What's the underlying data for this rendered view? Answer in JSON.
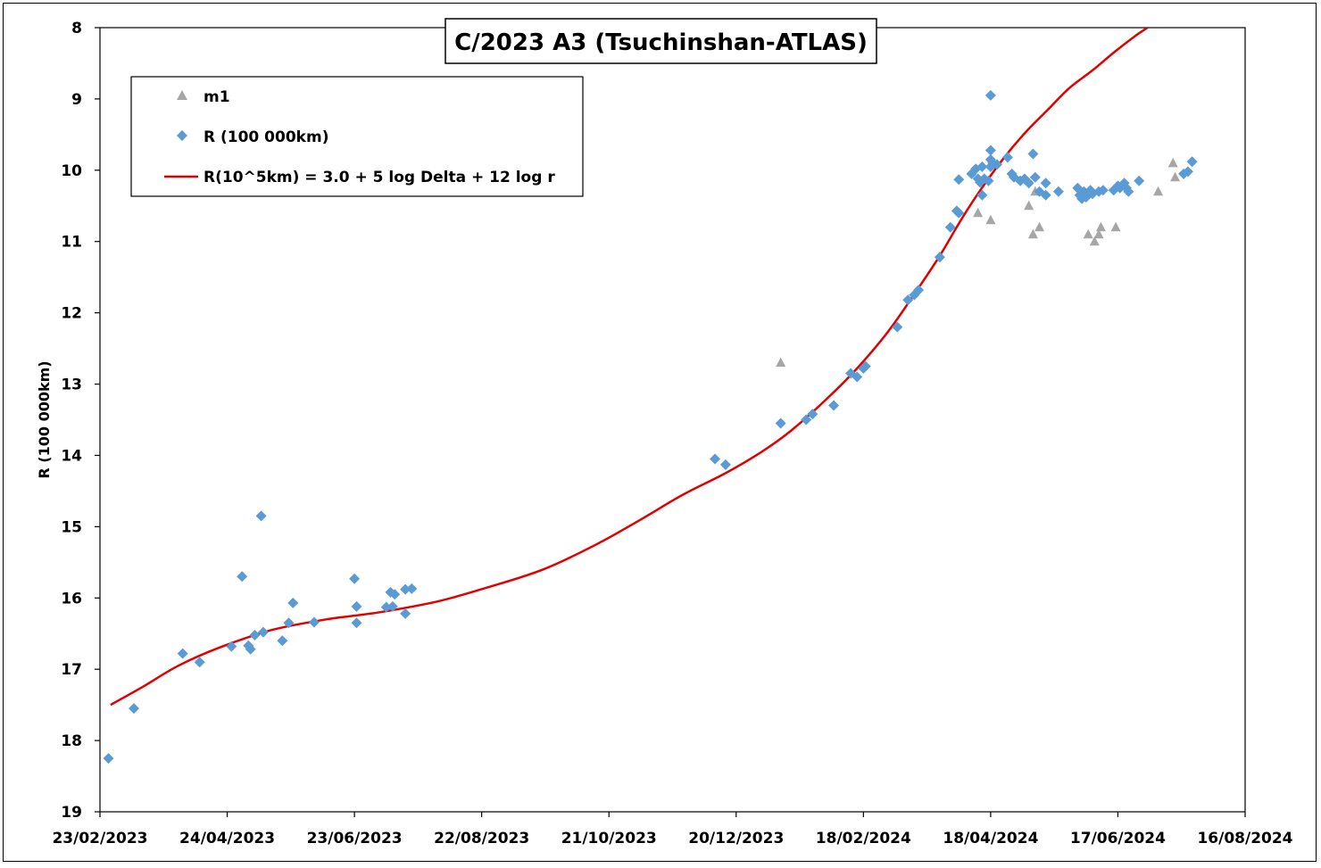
{
  "chart_data": {
    "type": "scatter",
    "title": "C/2023 A3 (Tsuchinshan-ATLAS)",
    "ylabel": "R (100 000km)",
    "xlabel": "",
    "x_type": "date",
    "xlim": [
      "2023-02-23",
      "2024-08-16"
    ],
    "ylim": [
      8,
      19
    ],
    "y_inverted": true,
    "x_ticks": [
      "23/02/2023",
      "24/04/2023",
      "23/06/2023",
      "22/08/2023",
      "21/10/2023",
      "20/12/2023",
      "18/02/2024",
      "18/04/2024",
      "17/06/2024",
      "16/08/2024"
    ],
    "y_ticks": [
      "8",
      "9",
      "10",
      "11",
      "12",
      "13",
      "14",
      "15",
      "16",
      "17",
      "18",
      "19"
    ],
    "grid": false,
    "legend_position": "top-left",
    "series": [
      {
        "name": "m1",
        "marker": "triangle",
        "color": "#a6a6a6",
        "points": [
          [
            "2024-01-10",
            12.7
          ],
          [
            "2024-04-12",
            10.6
          ],
          [
            "2024-04-18",
            10.7
          ],
          [
            "2024-05-06",
            10.5
          ],
          [
            "2024-05-08",
            10.9
          ],
          [
            "2024-05-09",
            10.3
          ],
          [
            "2024-05-11",
            10.8
          ],
          [
            "2024-06-03",
            10.9
          ],
          [
            "2024-06-06",
            11.0
          ],
          [
            "2024-06-08",
            10.9
          ],
          [
            "2024-06-09",
            10.8
          ],
          [
            "2024-06-16",
            10.8
          ],
          [
            "2024-07-06",
            10.3
          ],
          [
            "2024-07-13",
            9.9
          ],
          [
            "2024-07-14",
            10.1
          ]
        ]
      },
      {
        "name": "R (100 000km)",
        "marker": "diamond",
        "color": "#5b9bd5",
        "points": [
          [
            "2023-02-27",
            18.25
          ],
          [
            "2023-03-11",
            17.55
          ],
          [
            "2023-04-03",
            16.78
          ],
          [
            "2023-04-11",
            16.9
          ],
          [
            "2023-04-26",
            16.68
          ],
          [
            "2023-05-01",
            15.7
          ],
          [
            "2023-05-04",
            16.67
          ],
          [
            "2023-05-05",
            16.72
          ],
          [
            "2023-05-07",
            16.52
          ],
          [
            "2023-05-10",
            14.85
          ],
          [
            "2023-05-11",
            16.48
          ],
          [
            "2023-05-20",
            16.6
          ],
          [
            "2023-05-23",
            16.35
          ],
          [
            "2023-05-25",
            16.07
          ],
          [
            "2023-06-04",
            16.34
          ],
          [
            "2023-06-23",
            15.73
          ],
          [
            "2023-06-24",
            16.12
          ],
          [
            "2023-06-24",
            16.35
          ],
          [
            "2023-07-08",
            16.13
          ],
          [
            "2023-07-10",
            15.92
          ],
          [
            "2023-07-11",
            16.12
          ],
          [
            "2023-07-12",
            15.95
          ],
          [
            "2023-07-17",
            16.22
          ],
          [
            "2023-07-17",
            15.88
          ],
          [
            "2023-07-20",
            15.87
          ],
          [
            "2023-12-10",
            14.05
          ],
          [
            "2023-12-15",
            14.13
          ],
          [
            "2024-01-10",
            13.55
          ],
          [
            "2024-01-22",
            13.5
          ],
          [
            "2024-01-25",
            13.42
          ],
          [
            "2024-02-04",
            13.3
          ],
          [
            "2024-02-12",
            12.85
          ],
          [
            "2024-02-15",
            12.9
          ],
          [
            "2024-02-18",
            12.78
          ],
          [
            "2024-02-19",
            12.75
          ],
          [
            "2024-03-05",
            12.2
          ],
          [
            "2024-03-10",
            11.82
          ],
          [
            "2024-03-13",
            11.75
          ],
          [
            "2024-03-15",
            11.68
          ],
          [
            "2024-03-25",
            11.22
          ],
          [
            "2024-03-30",
            10.8
          ],
          [
            "2024-04-02",
            10.57
          ],
          [
            "2024-04-03",
            10.13
          ],
          [
            "2024-04-03",
            10.6
          ],
          [
            "2024-04-09",
            10.05
          ],
          [
            "2024-04-11",
            9.98
          ],
          [
            "2024-04-12",
            10.12
          ],
          [
            "2024-04-13",
            10.17
          ],
          [
            "2024-04-14",
            9.95
          ],
          [
            "2024-04-14",
            10.35
          ],
          [
            "2024-04-15",
            10.12
          ],
          [
            "2024-04-17",
            10.15
          ],
          [
            "2024-04-18",
            8.95
          ],
          [
            "2024-04-18",
            9.72
          ],
          [
            "2024-04-18",
            9.85
          ],
          [
            "2024-04-18",
            9.95
          ],
          [
            "2024-04-19",
            9.9
          ],
          [
            "2024-04-21",
            9.92
          ],
          [
            "2024-04-26",
            9.82
          ],
          [
            "2024-04-28",
            10.05
          ],
          [
            "2024-04-29",
            10.1
          ],
          [
            "2024-05-02",
            10.15
          ],
          [
            "2024-05-04",
            10.12
          ],
          [
            "2024-05-06",
            10.18
          ],
          [
            "2024-05-08",
            9.77
          ],
          [
            "2024-05-09",
            10.1
          ],
          [
            "2024-05-11",
            10.3
          ],
          [
            "2024-05-14",
            10.35
          ],
          [
            "2024-05-14",
            10.18
          ],
          [
            "2024-05-20",
            10.3
          ],
          [
            "2024-05-29",
            10.25
          ],
          [
            "2024-05-30",
            10.35
          ],
          [
            "2024-05-31",
            10.4
          ],
          [
            "2024-06-01",
            10.3
          ],
          [
            "2024-06-02",
            10.38
          ],
          [
            "2024-06-04",
            10.28
          ],
          [
            "2024-06-05",
            10.33
          ],
          [
            "2024-06-08",
            10.3
          ],
          [
            "2024-06-10",
            10.28
          ],
          [
            "2024-06-15",
            10.28
          ],
          [
            "2024-06-17",
            10.22
          ],
          [
            "2024-06-18",
            10.25
          ],
          [
            "2024-06-20",
            10.18
          ],
          [
            "2024-06-21",
            10.25
          ],
          [
            "2024-06-22",
            10.3
          ],
          [
            "2024-06-27",
            10.15
          ],
          [
            "2024-07-18",
            10.05
          ],
          [
            "2024-07-20",
            10.02
          ],
          [
            "2024-07-22",
            9.88
          ]
        ]
      },
      {
        "name": "R(10^5km) = 3.0 + 5 log Delta + 12 log r",
        "marker": "line",
        "color": "#e00000",
        "points": [
          [
            "2023-02-28",
            17.5
          ],
          [
            "2023-03-15",
            17.25
          ],
          [
            "2023-04-01",
            16.95
          ],
          [
            "2023-04-20",
            16.7
          ],
          [
            "2023-05-15",
            16.45
          ],
          [
            "2023-06-10",
            16.3
          ],
          [
            "2023-07-05",
            16.2
          ],
          [
            "2023-08-01",
            16.05
          ],
          [
            "2023-08-25",
            15.85
          ],
          [
            "2023-09-20",
            15.6
          ],
          [
            "2023-10-15",
            15.25
          ],
          [
            "2023-11-05",
            14.9
          ],
          [
            "2023-11-25",
            14.55
          ],
          [
            "2023-12-15",
            14.25
          ],
          [
            "2024-01-01",
            13.95
          ],
          [
            "2024-01-15",
            13.65
          ],
          [
            "2024-02-01",
            13.2
          ],
          [
            "2024-02-15",
            12.78
          ],
          [
            "2024-03-01",
            12.25
          ],
          [
            "2024-03-15",
            11.65
          ],
          [
            "2024-03-25",
            11.2
          ],
          [
            "2024-04-05",
            10.65
          ],
          [
            "2024-04-15",
            10.2
          ],
          [
            "2024-04-25",
            9.8
          ],
          [
            "2024-05-05",
            9.45
          ],
          [
            "2024-05-15",
            9.15
          ],
          [
            "2024-05-25",
            8.85
          ],
          [
            "2024-06-05",
            8.6
          ],
          [
            "2024-06-15",
            8.35
          ],
          [
            "2024-06-25",
            8.12
          ],
          [
            "2024-07-01",
            8.0
          ]
        ]
      }
    ]
  }
}
